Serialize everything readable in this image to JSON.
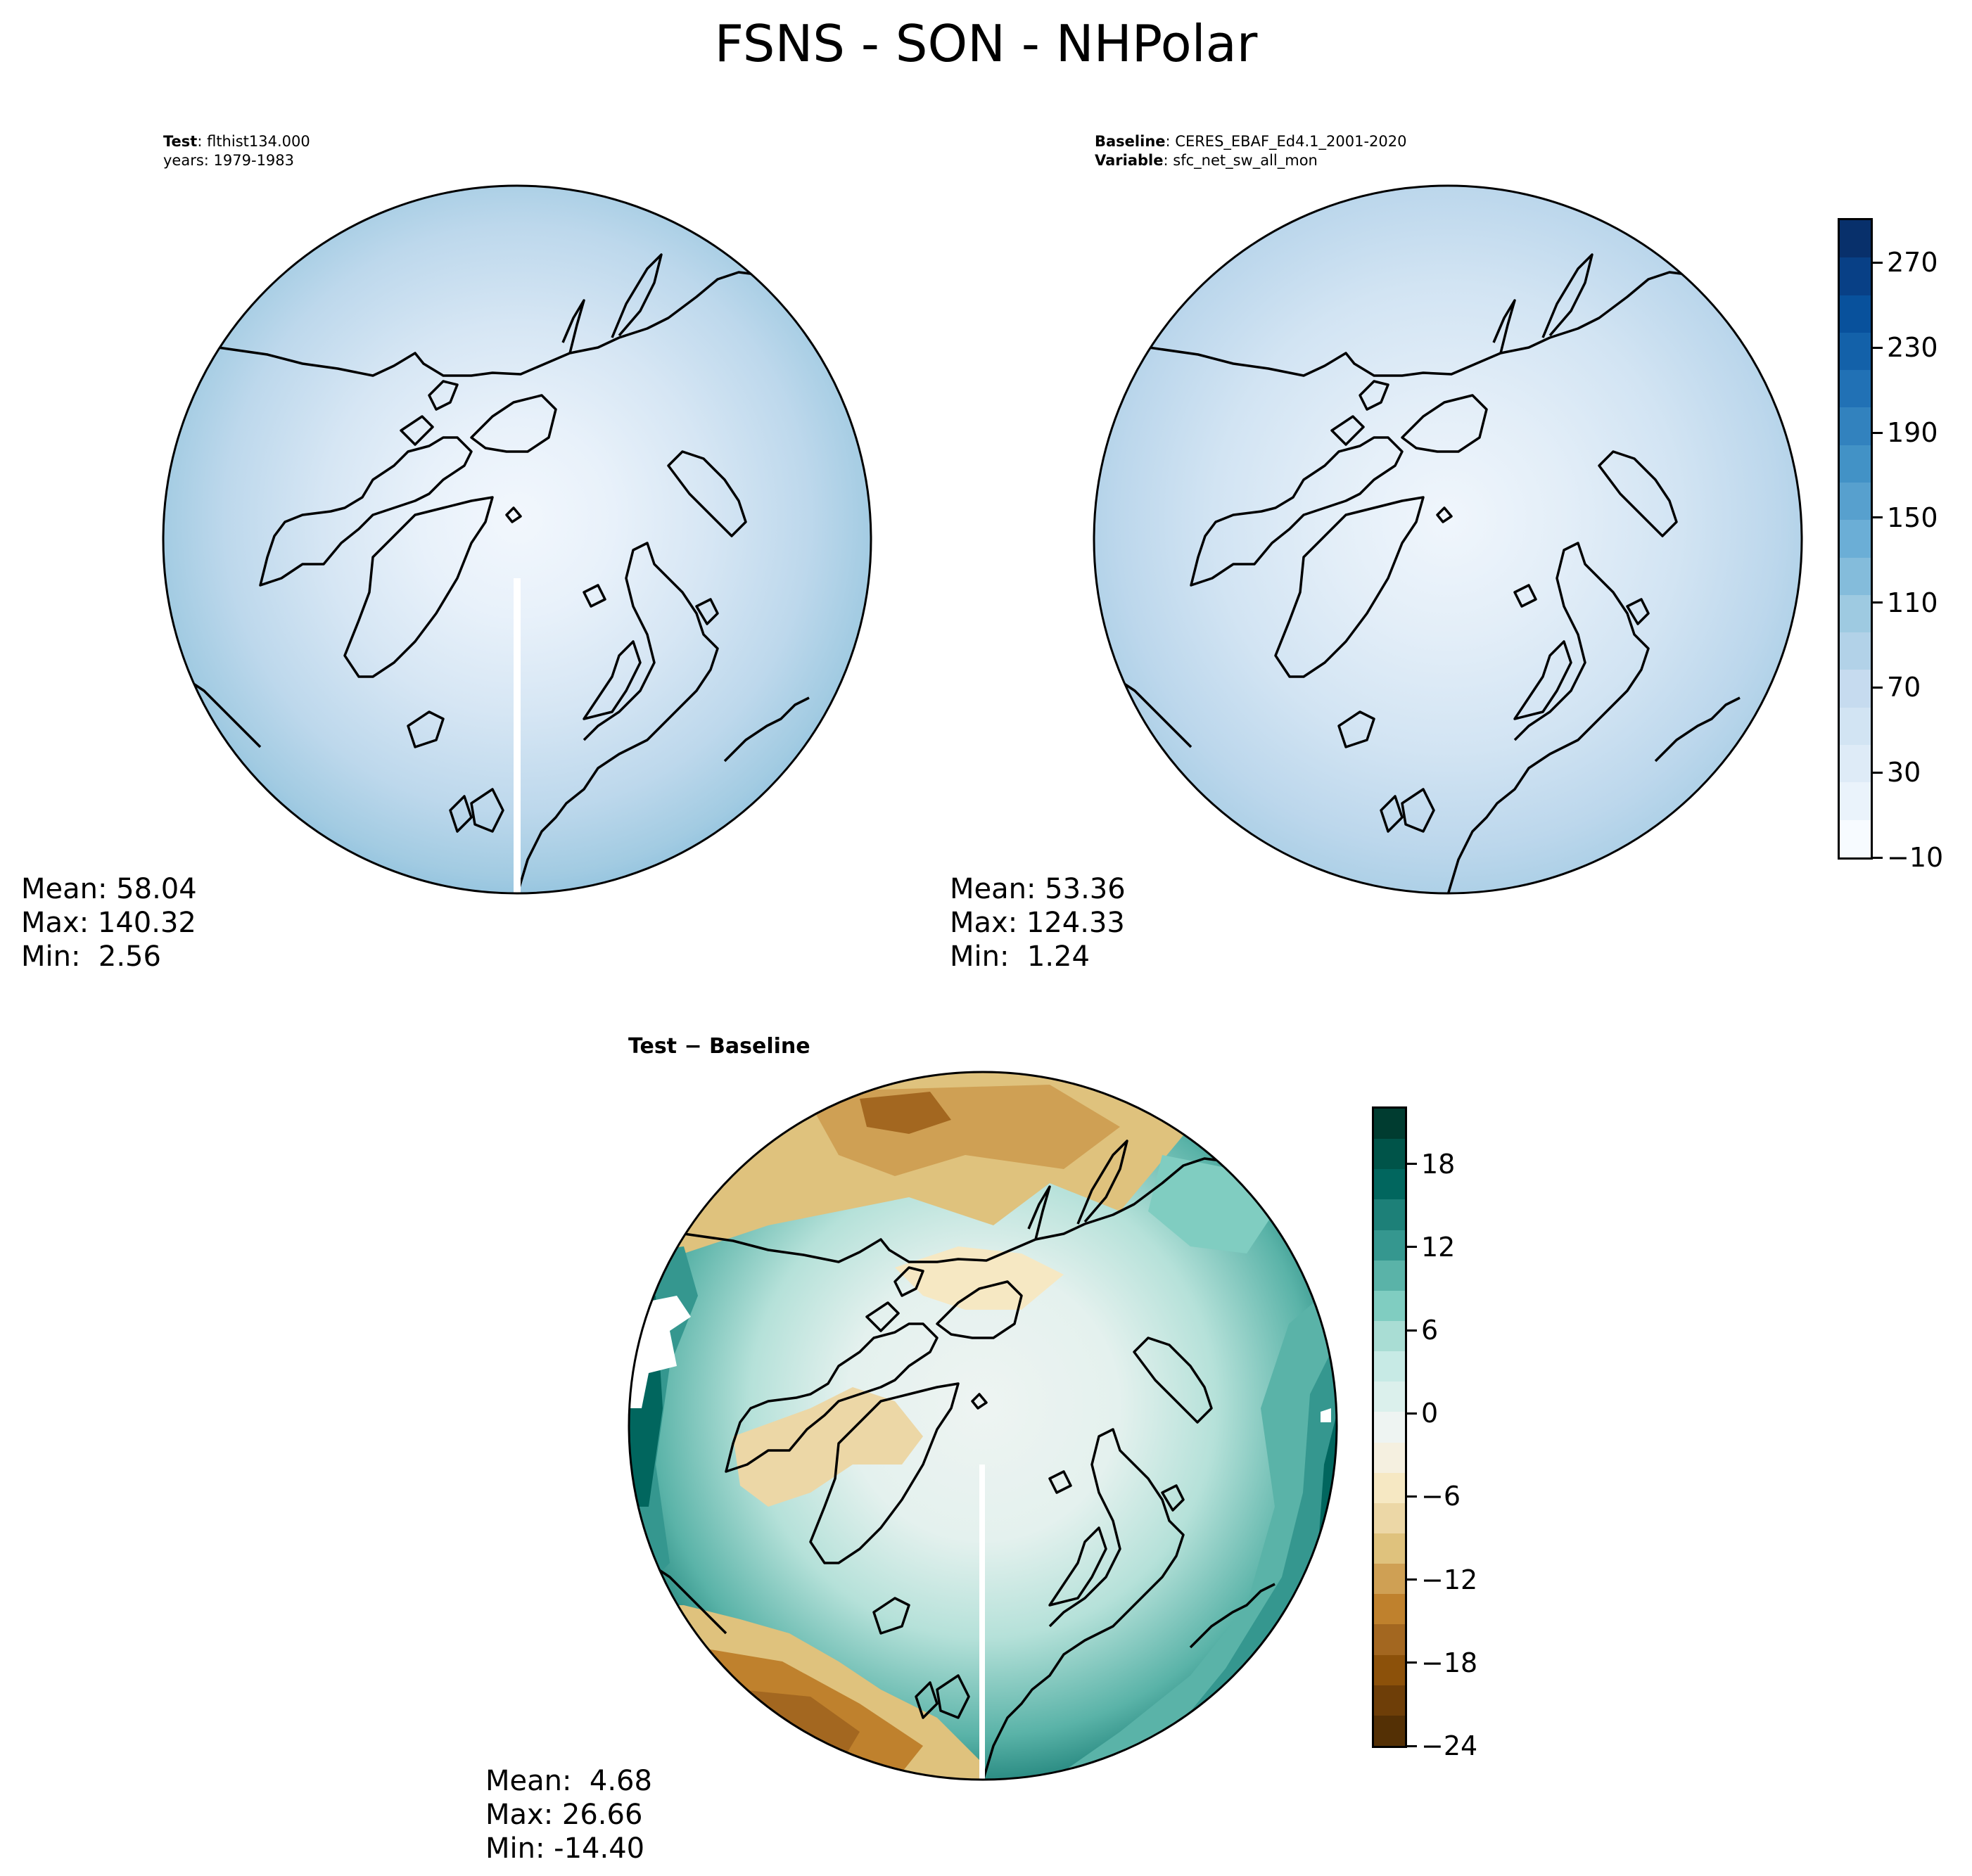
{
  "title": "FSNS - SON - NHPolar",
  "test_panel": {
    "label_bold": "Test",
    "label_value": "flthist134.000",
    "years": "years: 1979-1983",
    "stats": {
      "mean": "Mean: 58.04",
      "max": "Max: 140.32",
      "min": "Min:  2.56"
    }
  },
  "baseline_panel": {
    "label_bold": "Baseline",
    "label_value": "CERES_EBAF_Ed4.1_2001-2020",
    "variable_bold": "Variable",
    "variable_value": "sfc_net_sw_all_mon",
    "stats": {
      "mean": "Mean: 53.36",
      "max": "Max: 124.33",
      "min": "Min:  1.24"
    }
  },
  "diff_panel": {
    "label": "Test − Baseline",
    "stats": {
      "mean": "Mean:  4.68",
      "max": "Max: 26.66",
      "min": "Min: -14.40"
    }
  },
  "colorbar_main": {
    "ticks": [
      "−10",
      "30",
      "70",
      "110",
      "150",
      "190",
      "230",
      "270"
    ],
    "tick_values": [
      -10,
      30,
      70,
      110,
      150,
      190,
      230,
      270
    ],
    "range": [
      -10,
      290
    ],
    "colors": [
      "#f7fbff",
      "#eaf3fb",
      "#deebf7",
      "#d2e4f3",
      "#c6dbef",
      "#b2d2e8",
      "#9ecae1",
      "#84bcdb",
      "#6baed6",
      "#57a0ce",
      "#4292c6",
      "#3282be",
      "#2171b5",
      "#1361a9",
      "#08519c",
      "#084086",
      "#08306b"
    ]
  },
  "colorbar_diff": {
    "ticks": [
      "−24",
      "−18",
      "−12",
      "−6",
      "0",
      "6",
      "12",
      "18"
    ],
    "tick_values": [
      -24,
      -18,
      -12,
      -6,
      0,
      6,
      12,
      18
    ],
    "range": [
      -24,
      22
    ],
    "colors": [
      "#543005",
      "#6e3e08",
      "#8c510a",
      "#a36720",
      "#bf812d",
      "#cfa054",
      "#dfc27d",
      "#ecd7a6",
      "#f6e8c3",
      "#f5f0e0",
      "#eef4f2",
      "#dbf0ec",
      "#c7eae5",
      "#a9ddd4",
      "#80cdc1",
      "#5ab3a8",
      "#35978f",
      "#1d8078",
      "#01665e",
      "#005449",
      "#003c30"
    ]
  },
  "colors": {
    "test_ocean": "#b9d6ec",
    "test_center": "#eff5fc",
    "baseline_ocean": "#bcd7ec",
    "baseline_center": "#edf4fb",
    "diff_mid": "#eef4f2",
    "diff_teal": "#35978f",
    "diff_brown": "#bf812d",
    "coast": "#000000"
  }
}
